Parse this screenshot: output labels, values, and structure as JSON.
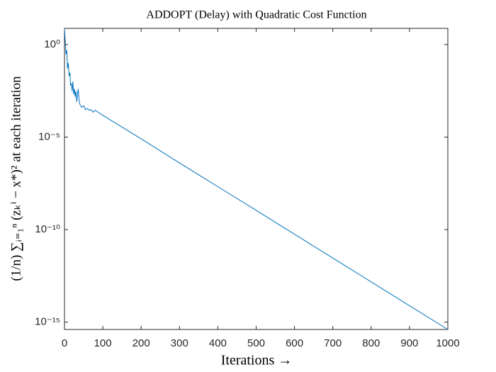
{
  "chart_data": {
    "type": "line",
    "title": "ADDOPT (Delay) with Quadratic Cost Function",
    "x_label": "Iterations →",
    "y_label": "(1/n) ∑ᵢ₌₁ⁿ (zₖⁱ − x*)²  at each iteration",
    "x": [
      0,
      2,
      4,
      6,
      8,
      10,
      12,
      14,
      16,
      18,
      20,
      22,
      24,
      26,
      28,
      30,
      32,
      34,
      36,
      38,
      40,
      45,
      50,
      55,
      60,
      65,
      70,
      75,
      80,
      100,
      200,
      300,
      400,
      500,
      600,
      700,
      800,
      900,
      1000
    ],
    "series": [
      {
        "name": "ADDOPT (Delay)",
        "color": "#0072bd",
        "values": [
          7,
          1.5,
          0.3,
          0.5,
          0.05,
          0.1,
          0.02,
          0.03,
          0.006,
          0.008,
          0.003,
          0.01,
          0.002,
          0.004,
          0.0015,
          0.003,
          0.0008,
          0.002,
          0.004,
          0.001,
          0.0006,
          0.0004,
          0.0005,
          0.0003,
          0.00035,
          0.00028,
          0.0003,
          0.00022,
          0.00028,
          0.00015,
          8e-06,
          4e-07,
          2.1e-08,
          1.1e-09,
          5.6e-11,
          2.9e-12,
          1.5e-13,
          7.7e-15,
          4e-16
        ]
      }
    ],
    "xlim": [
      0,
      1000
    ],
    "xticks": [
      0,
      100,
      200,
      300,
      400,
      500,
      600,
      700,
      800,
      900,
      1000
    ],
    "ylim": [
      4e-16,
      7.5
    ],
    "yscale": "log",
    "yticks": [
      {
        "value": 1e-15,
        "label": "10⁻¹⁵"
      },
      {
        "value": 1e-10,
        "label": "10⁻¹⁰"
      },
      {
        "value": 1e-05,
        "label": "10⁻⁵"
      },
      {
        "value": 1,
        "label": "10⁰"
      }
    ],
    "grid": false
  }
}
